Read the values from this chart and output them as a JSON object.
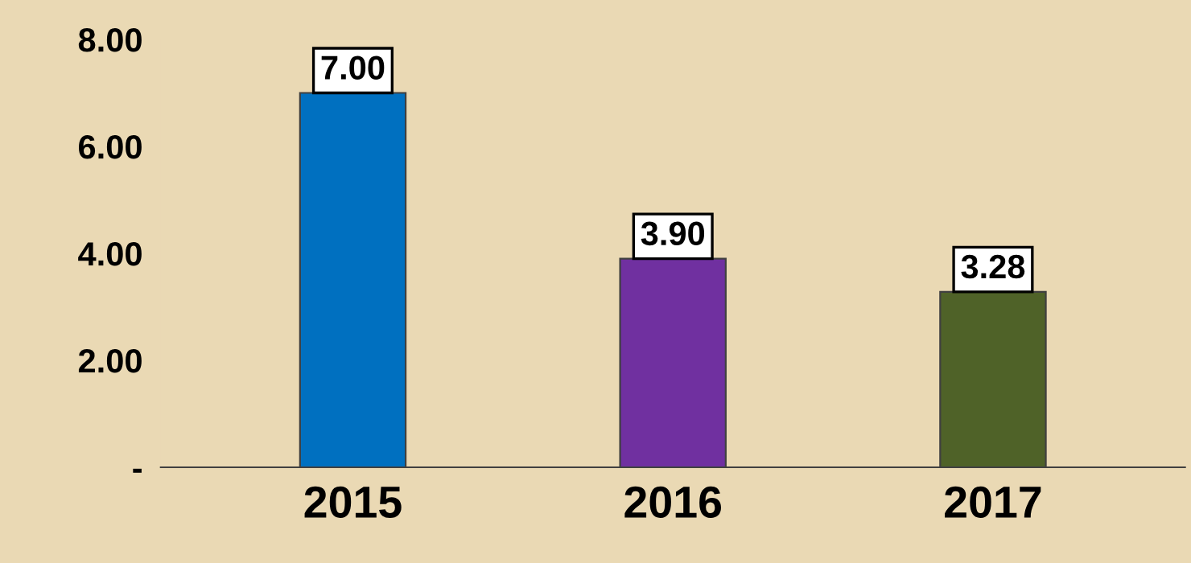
{
  "chart_data": {
    "type": "bar",
    "categories": [
      "2015",
      "2016",
      "2017"
    ],
    "values": [
      7.0,
      3.9,
      3.28
    ],
    "colors": [
      "#0070c0",
      "#7030a0",
      "#4f6228"
    ],
    "value_labels": [
      "7.00",
      "3.90",
      "3.28"
    ],
    "ylim": [
      0,
      8
    ],
    "yticks": [
      {
        "value": 0,
        "label": "-"
      },
      {
        "value": 2,
        "label": "2.00"
      },
      {
        "value": 4,
        "label": "4.00"
      },
      {
        "value": 6,
        "label": "6.00"
      },
      {
        "value": 8,
        "label": "8.00"
      }
    ],
    "grid": false,
    "legend": false
  }
}
